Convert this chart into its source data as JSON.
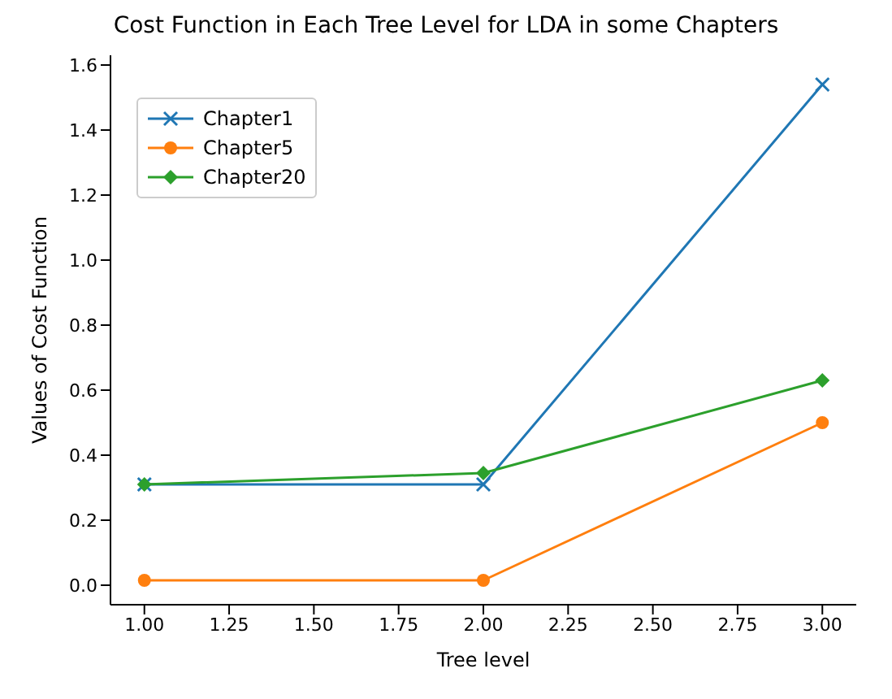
{
  "chart_data": {
    "type": "line",
    "title": "Cost Function in Each Tree Level for LDA in some Chapters",
    "xlabel": "Tree level",
    "ylabel": "Values of Cost Function",
    "x": [
      1,
      2,
      3
    ],
    "series": [
      {
        "name": "Chapter1",
        "color": "#1f77b4",
        "values": [
          0.31,
          0.31,
          1.54
        ],
        "marker": "cross"
      },
      {
        "name": "Chapter5",
        "color": "#ff7f0e",
        "values": [
          0.015,
          0.015,
          0.5
        ],
        "marker": "circle"
      },
      {
        "name": "Chapter20",
        "color": "#2ca02c",
        "values": [
          0.31,
          0.345,
          0.63
        ],
        "marker": "diamond"
      }
    ],
    "xlim": [
      0.9,
      3.1
    ],
    "xticks": [
      {
        "value": 1,
        "label": "1.00"
      },
      {
        "value": 1.25,
        "label": "1.25"
      },
      {
        "value": 1.5,
        "label": "1.50"
      },
      {
        "value": 1.75,
        "label": "1.75"
      },
      {
        "value": 2,
        "label": "2.00"
      },
      {
        "value": 2.25,
        "label": "2.25"
      },
      {
        "value": 2.5,
        "label": "2.50"
      },
      {
        "value": 2.75,
        "label": "2.75"
      },
      {
        "value": 3,
        "label": "3.00"
      }
    ],
    "ylim": [
      -0.06,
      1.63
    ],
    "yticks": [
      {
        "value": 0,
        "label": "0.0"
      },
      {
        "value": 0.2,
        "label": "0.2"
      },
      {
        "value": 0.4,
        "label": "0.4"
      },
      {
        "value": 0.6,
        "label": "0.6"
      },
      {
        "value": 0.8,
        "label": "0.8"
      },
      {
        "value": 1,
        "label": "1.0"
      },
      {
        "value": 1.2,
        "label": "1.2"
      },
      {
        "value": 1.4,
        "label": "1.4"
      },
      {
        "value": 1.6,
        "label": "1.6"
      }
    ],
    "legend": "top left",
    "line_style": "solid"
  }
}
